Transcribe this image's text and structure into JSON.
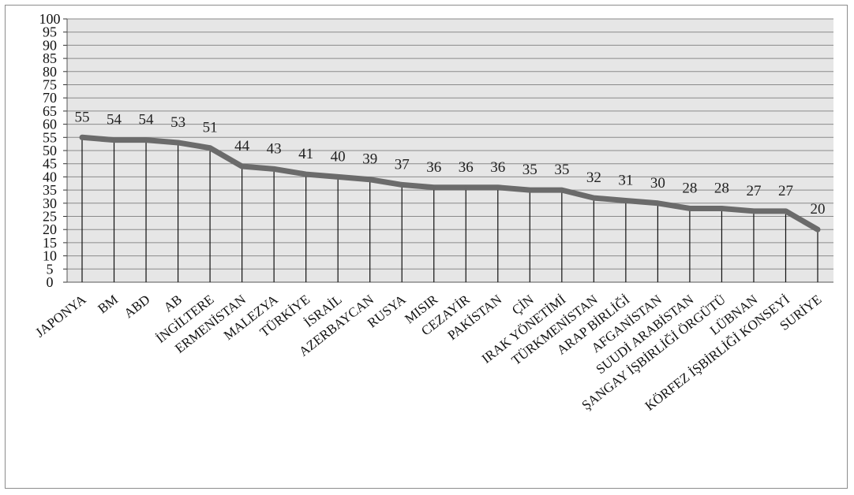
{
  "chart_data": {
    "type": "line",
    "title": "",
    "xlabel": "",
    "ylabel": "",
    "ylim": [
      0,
      100
    ],
    "ytick_step": 5,
    "grid": true,
    "legend": "none",
    "colors": {
      "line": "#6b6b6b",
      "plot_bg": "#e6e6e6",
      "grid": "#8a8a8a",
      "drop_line": "#111111"
    },
    "categories": [
      "JAPONYA",
      "BM",
      "ABD",
      "AB",
      "İNGİLTERE",
      "ERMENİSTAN",
      "MALEZYA",
      "TÜRKİYE",
      "İSRAİL",
      "AZERBAYCAN",
      "RUSYA",
      "MISIR",
      "CEZAYİR",
      "PAKİSTAN",
      "ÇİN",
      "IRAK YÖNETİMİ",
      "TÜRKMENİSTAN",
      "ARAP BİRLİĞİ",
      "AFGANİSTAN",
      "SUUDİ ARABİSTAN",
      "ŞANGAY İŞBİRLİĞİ ÖRGÜTÜ",
      "LÜBNAN",
      "KÖRFEZ İŞBİRLİĞİ KONSEYİ",
      "SURİYE"
    ],
    "values": [
      55,
      54,
      54,
      53,
      51,
      44,
      43,
      41,
      40,
      39,
      37,
      36,
      36,
      36,
      35,
      35,
      32,
      31,
      30,
      28,
      28,
      27,
      27,
      20
    ],
    "data_labels": [
      "55",
      "54",
      "54",
      "53",
      "51",
      "44",
      "43",
      "41",
      "40",
      "39",
      "37",
      "36",
      "36",
      "36",
      "35",
      "35",
      "32",
      "31",
      "30",
      "28",
      "28",
      "27",
      "27",
      "20"
    ],
    "ytick_labels": [
      "0",
      "5",
      "10",
      "15",
      "20",
      "25",
      "30",
      "35",
      "40",
      "45",
      "50",
      "55",
      "60",
      "65",
      "70",
      "75",
      "80",
      "85",
      "90",
      "95",
      "100"
    ]
  }
}
